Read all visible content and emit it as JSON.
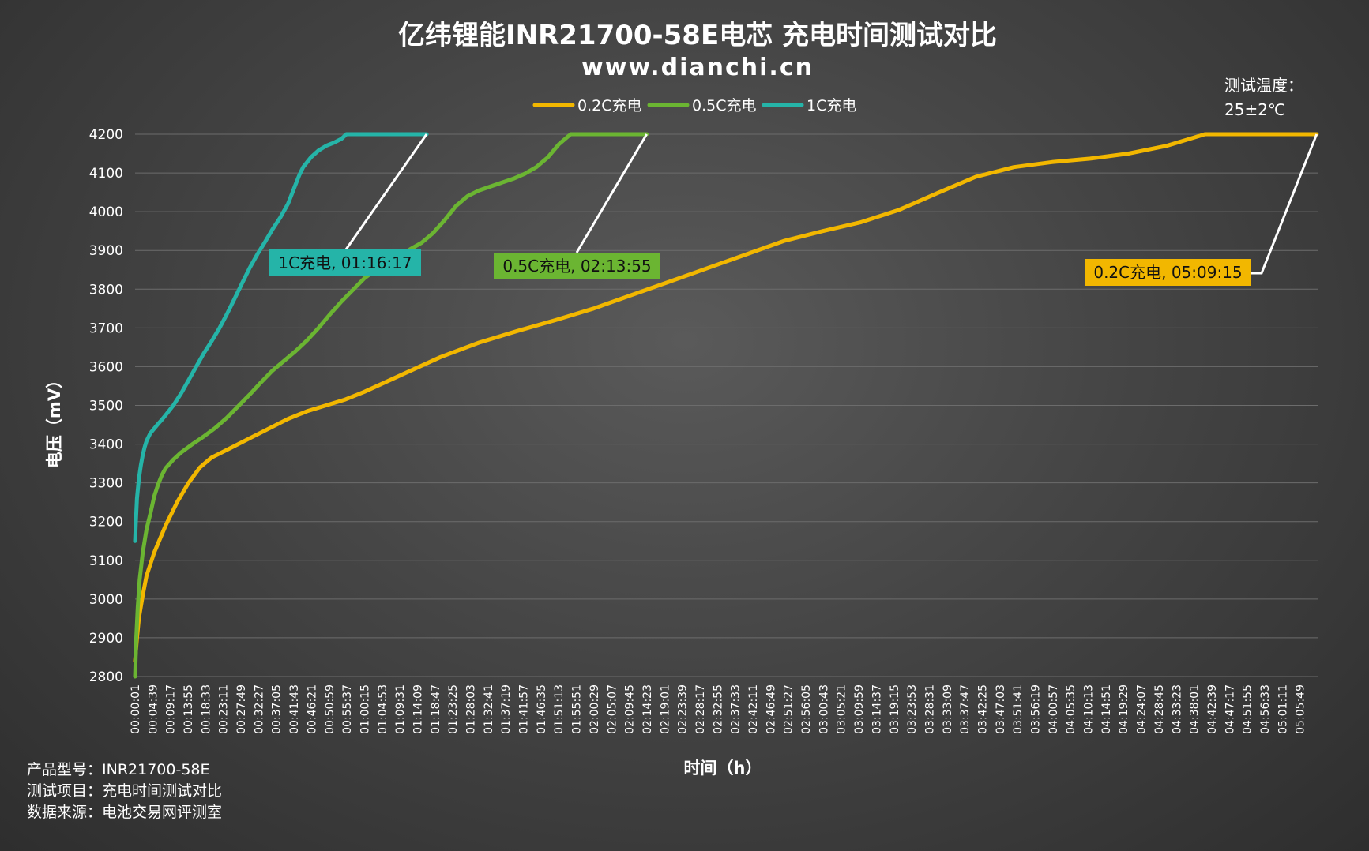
{
  "chart_data": {
    "type": "line",
    "title": "亿纬锂能INR21700-58E电芯 充电时间测试对比",
    "subtitle": "www.dianchi.cn",
    "xlabel": "时间（h）",
    "ylabel": "电压（mV）",
    "ylim": [
      2800,
      4200
    ],
    "yticks": [
      2800,
      2900,
      3000,
      3100,
      3200,
      3300,
      3400,
      3500,
      3600,
      3700,
      3800,
      3900,
      4000,
      4100,
      4200
    ],
    "x_tick_labels": [
      "00:00:01",
      "00:04:39",
      "00:09:17",
      "00:13:55",
      "00:18:33",
      "00:23:11",
      "00:27:49",
      "00:32:27",
      "00:37:05",
      "00:41:43",
      "00:46:21",
      "00:50:59",
      "00:55:37",
      "01:00:15",
      "01:04:53",
      "01:09:31",
      "01:14:09",
      "01:18:47",
      "01:23:25",
      "01:28:03",
      "01:32:41",
      "01:37:19",
      "01:41:57",
      "01:46:35",
      "01:51:13",
      "01:55:51",
      "02:00:29",
      "02:05:07",
      "02:09:45",
      "02:14:23",
      "02:19:01",
      "02:23:39",
      "02:28:17",
      "02:32:55",
      "02:37:33",
      "02:42:11",
      "02:46:49",
      "02:51:27",
      "02:56:05",
      "03:00:43",
      "03:05:21",
      "03:09:59",
      "03:14:37",
      "03:19:15",
      "03:23:53",
      "03:28:31",
      "03:33:09",
      "03:37:47",
      "03:42:25",
      "03:47:03",
      "03:51:41",
      "03:56:19",
      "04:00:57",
      "04:05:35",
      "04:10:13",
      "04:14:51",
      "04:19:29",
      "04:24:07",
      "04:28:45",
      "04:33:23",
      "04:38:01",
      "04:42:39",
      "04:47:17",
      "04:51:55",
      "04:56:33",
      "05:01:11",
      "05:05:49"
    ],
    "xlim_minutes": [
      0,
      309.5
    ],
    "grid": true,
    "legend_position": "top-center",
    "series": [
      {
        "name": "0.2C充电",
        "color": "#F2B700",
        "x_minutes": [
          0,
          0.5,
          1,
          2,
          3,
          5,
          8,
          11,
          14,
          17,
          20,
          25,
          30,
          40,
          45,
          50,
          55,
          60,
          70,
          80,
          90,
          100,
          110,
          120,
          130,
          140,
          150,
          160,
          170,
          180,
          190,
          200,
          210,
          220,
          230,
          240,
          250,
          260,
          270,
          275,
          280,
          285,
          288,
          292,
          300,
          309.25
        ],
        "values": [
          2840,
          2900,
          2950,
          3010,
          3060,
          3120,
          3190,
          3250,
          3300,
          3340,
          3365,
          3390,
          3415,
          3465,
          3485,
          3500,
          3515,
          3535,
          3580,
          3625,
          3662,
          3692,
          3720,
          3750,
          3785,
          3820,
          3855,
          3890,
          3925,
          3950,
          3973,
          4005,
          4048,
          4090,
          4115,
          4128,
          4137,
          4150,
          4170,
          4185,
          4200,
          4200,
          4200,
          4200,
          4200,
          4200
        ]
      },
      {
        "name": "0.5C充电",
        "color": "#6BB532",
        "x_minutes": [
          0,
          0.3,
          0.7,
          1.2,
          2,
          3,
          4,
          5,
          6,
          7,
          8,
          10,
          12,
          15,
          18,
          21,
          24,
          27,
          30,
          33,
          36,
          39,
          42,
          45,
          48,
          51,
          54,
          57,
          60,
          63,
          66,
          69,
          72,
          75,
          78,
          81,
          84,
          87,
          90,
          93,
          96,
          99,
          102,
          105,
          108,
          111,
          114,
          116,
          118,
          120,
          122,
          125,
          128,
          131,
          133.9
        ],
        "values": [
          2800,
          2900,
          2980,
          3050,
          3120,
          3180,
          3220,
          3265,
          3295,
          3320,
          3338,
          3360,
          3378,
          3400,
          3420,
          3442,
          3468,
          3498,
          3528,
          3560,
          3590,
          3615,
          3640,
          3668,
          3700,
          3735,
          3768,
          3798,
          3828,
          3850,
          3868,
          3885,
          3903,
          3920,
          3945,
          3978,
          4015,
          4040,
          4055,
          4065,
          4075,
          4085,
          4098,
          4115,
          4140,
          4175,
          4200,
          4200,
          4200,
          4200,
          4200,
          4200,
          4200,
          4200,
          4200
        ]
      },
      {
        "name": "1C充电",
        "color": "#25B4A8",
        "x_minutes": [
          0,
          0.2,
          0.5,
          1,
          1.5,
          2,
          2.5,
          3,
          3.5,
          4,
          5,
          6,
          7,
          8,
          10,
          12,
          14,
          16,
          18,
          20,
          22,
          24,
          26,
          28,
          30,
          32,
          34,
          36,
          38,
          40,
          41,
          42,
          43,
          44,
          46,
          48,
          50,
          52,
          54,
          55.3,
          56,
          58,
          62,
          66,
          70,
          74,
          76.3
        ],
        "values": [
          3150,
          3200,
          3260,
          3310,
          3345,
          3372,
          3392,
          3408,
          3418,
          3428,
          3440,
          3452,
          3463,
          3475,
          3500,
          3530,
          3565,
          3600,
          3635,
          3665,
          3698,
          3735,
          3775,
          3815,
          3855,
          3890,
          3922,
          3955,
          3985,
          4020,
          4045,
          4070,
          4095,
          4115,
          4140,
          4158,
          4170,
          4178,
          4188,
          4200,
          4200,
          4200,
          4200,
          4200,
          4200,
          4200,
          4200
        ]
      }
    ],
    "annotations": [
      {
        "text": "1C充电, 01:16:17",
        "series": "1C充电",
        "at_minutes": 76.3,
        "color": "#25B4A8"
      },
      {
        "text": "0.5C充电, 02:13:55",
        "series": "0.5C充电",
        "at_minutes": 133.9,
        "color": "#6BB532"
      },
      {
        "text": "0.2C充电, 05:09:15",
        "series": "0.2C充电",
        "at_minutes": 309.25,
        "color": "#F2B700"
      }
    ],
    "note": {
      "line1": "测试温度：",
      "line2": "25±2℃"
    }
  },
  "info": {
    "model": "产品型号：INR21700-58E",
    "project": "测试项目：充电时间测试对比",
    "source": "数据来源：电池交易网评测室"
  }
}
